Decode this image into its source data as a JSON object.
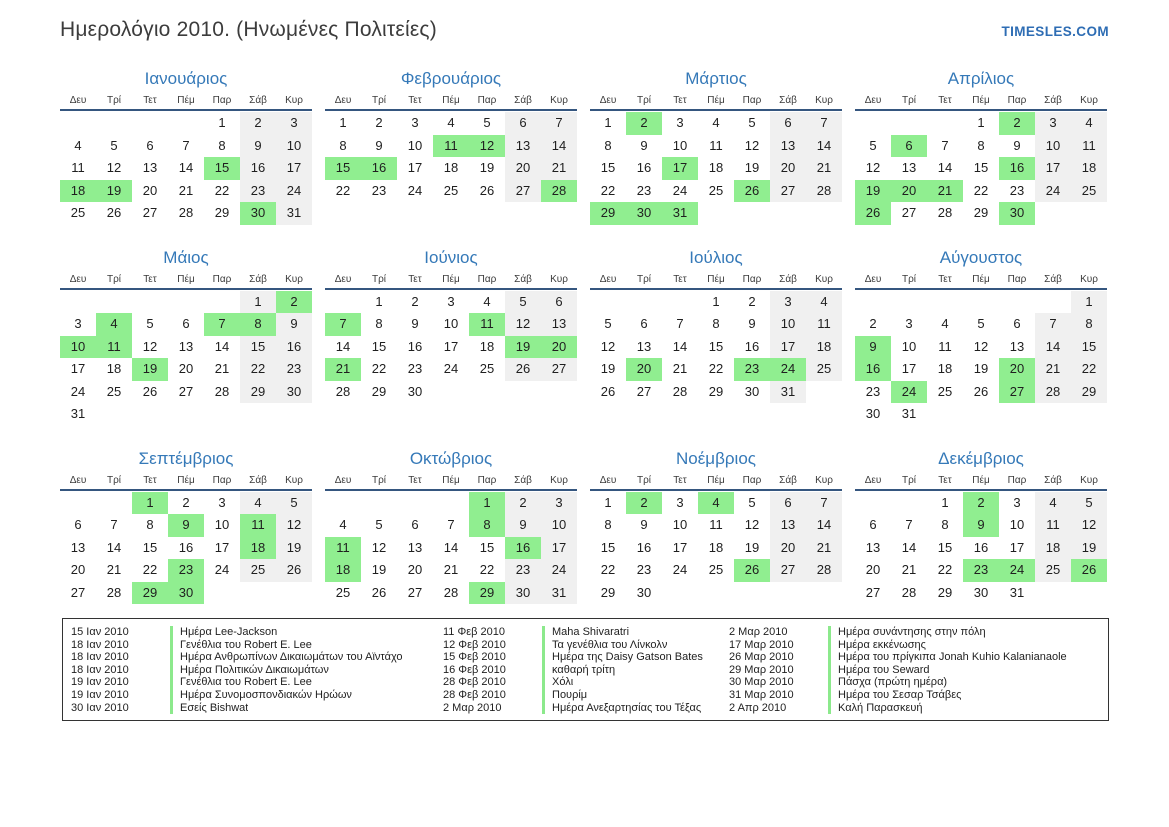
{
  "header": {
    "title": "Ημερολόγιο 2010. (Ηνωμένες Πολιτείες)",
    "site": "TIMESLES.COM"
  },
  "day_headers": [
    "Δευ",
    "Τρί",
    "Τετ",
    "Πέμ",
    "Παρ",
    "Σάβ",
    "Κυρ"
  ],
  "months": [
    {
      "name": "Ιανουάριος",
      "start": 4,
      "days": 31,
      "highlighted": [
        15,
        18,
        19,
        30
      ]
    },
    {
      "name": "Φεβρουάριος",
      "start": 0,
      "days": 28,
      "highlighted": [
        11,
        12,
        15,
        16,
        28
      ]
    },
    {
      "name": "Μάρτιος",
      "start": 0,
      "days": 31,
      "highlighted": [
        2,
        17,
        26,
        29,
        30,
        31
      ]
    },
    {
      "name": "Απρίλιος",
      "start": 3,
      "days": 30,
      "highlighted": [
        2,
        6,
        16,
        19,
        20,
        21,
        26,
        30
      ]
    },
    {
      "name": "Μάιος",
      "start": 5,
      "days": 31,
      "highlighted": [
        2,
        4,
        7,
        8,
        10,
        11,
        19
      ]
    },
    {
      "name": "Ιούνιος",
      "start": 1,
      "days": 30,
      "highlighted": [
        7,
        11,
        19,
        20,
        21
      ]
    },
    {
      "name": "Ιούλιος",
      "start": 3,
      "days": 31,
      "highlighted": [
        20,
        23,
        24
      ]
    },
    {
      "name": "Αύγουστος",
      "start": 6,
      "days": 31,
      "highlighted": [
        9,
        16,
        20,
        24,
        27
      ]
    },
    {
      "name": "Σεπτέμβριος",
      "start": 2,
      "days": 30,
      "highlighted": [
        1,
        9,
        11,
        18,
        23,
        29,
        30
      ]
    },
    {
      "name": "Οκτώβριος",
      "start": 4,
      "days": 31,
      "highlighted": [
        1,
        8,
        11,
        16,
        18,
        29
      ]
    },
    {
      "name": "Νοέμβριος",
      "start": 0,
      "days": 30,
      "highlighted": [
        2,
        4,
        26
      ]
    },
    {
      "name": "Δεκέμβριος",
      "start": 2,
      "days": 31,
      "highlighted": [
        2,
        9,
        23,
        24,
        26
      ]
    }
  ],
  "legend": {
    "columns": [
      [
        {
          "date": "15 Ιαν 2010",
          "label": "Ημέρα Lee-Jackson"
        },
        {
          "date": "18 Ιαν 2010",
          "label": "Γενέθλια του Robert E. Lee"
        },
        {
          "date": "18 Ιαν 2010",
          "label": "Ημέρα Ανθρωπίνων Δικαιωμάτων του Αϊντάχο"
        },
        {
          "date": "18 Ιαν 2010",
          "label": "Ημέρα Πολιτικών Δικαιωμάτων"
        },
        {
          "date": "19 Ιαν 2010",
          "label": "Γενέθλια του Robert E. Lee"
        },
        {
          "date": "19 Ιαν 2010",
          "label": "Ημέρα Συνομοσπονδιακών Ηρώων"
        },
        {
          "date": "30 Ιαν 2010",
          "label": "Εσείς Bishwat"
        }
      ],
      [
        {
          "date": "11 Φεβ 2010",
          "label": "Maha Shivaratri"
        },
        {
          "date": "12 Φεβ 2010",
          "label": "Τα γενέθλια του Λίνκολν"
        },
        {
          "date": "15 Φεβ 2010",
          "label": "Ημέρα της Daisy Gatson Bates"
        },
        {
          "date": "16 Φεβ 2010",
          "label": "καθαρή τρίτη"
        },
        {
          "date": "28 Φεβ 2010",
          "label": "Χόλι"
        },
        {
          "date": "28 Φεβ 2010",
          "label": "Πουρίμ"
        },
        {
          "date": "2 Μαρ 2010",
          "label": "Ημέρα Ανεξαρτησίας του Τέξας"
        }
      ],
      [
        {
          "date": "2 Μαρ 2010",
          "label": "Ημέρα συνάντησης στην πόλη"
        },
        {
          "date": "17 Μαρ 2010",
          "label": "Ημέρα εκκένωσης"
        },
        {
          "date": "26 Μαρ 2010",
          "label": "Ημέρα του πρίγκιπα Jonah Kuhio Kalanianaole"
        },
        {
          "date": "29 Μαρ 2010",
          "label": "Ημέρα του Seward"
        },
        {
          "date": "30 Μαρ 2010",
          "label": "Πάσχα (πρώτη ημέρα)"
        },
        {
          "date": "31 Μαρ 2010",
          "label": "Ημέρα του Σεσαρ Τσάβες"
        },
        {
          "date": "2 Απρ 2010",
          "label": "Καλή Παρασκευή"
        }
      ]
    ]
  },
  "colors": {
    "accent_blue": "#3579b8",
    "site_blue": "#2e6db4",
    "header_line_navy": "#35567f",
    "highlight_green": "#90ee90",
    "weekend_gray": "#f0f0f0",
    "legend_bar_green": "#8ce98c"
  }
}
